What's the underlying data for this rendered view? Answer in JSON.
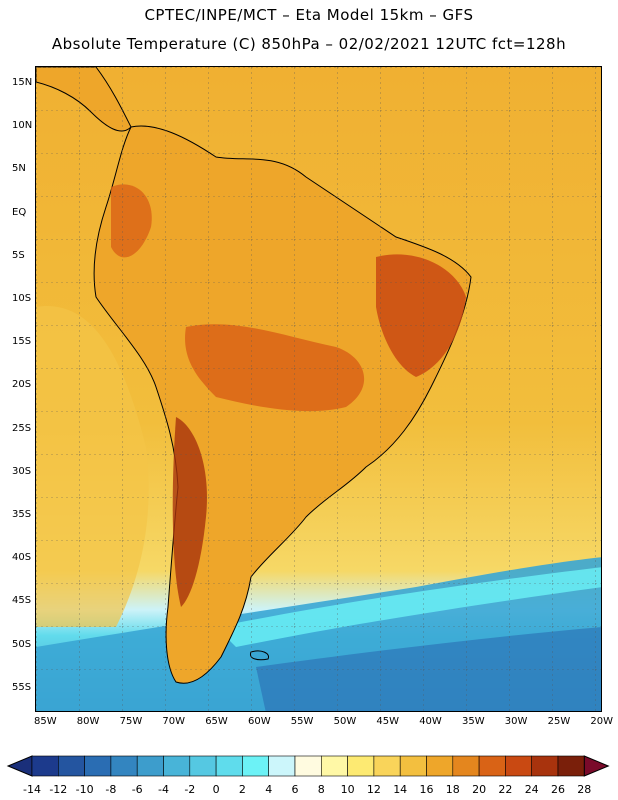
{
  "header": {
    "line1": "CPTEC/INPE/MCT –  Eta Model 15km – GFS",
    "line2": "Absolute Temperature (C) 850hPa – 02/02/2021 12UTC fct=128h"
  },
  "map": {
    "lat_labels": [
      "15N",
      "10N",
      "5N",
      "EQ",
      "5S",
      "10S",
      "15S",
      "20S",
      "25S",
      "30S",
      "35S",
      "40S",
      "45S",
      "50S",
      "55S"
    ],
    "lon_labels": [
      "85W",
      "80W",
      "75W",
      "70W",
      "65W",
      "60W",
      "55W",
      "50W",
      "45W",
      "40W",
      "35W",
      "30W",
      "25W",
      "20W"
    ]
  },
  "colorbar": {
    "labels": [
      "-14",
      "-12",
      "-10",
      "-8",
      "-6",
      "-4",
      "-2",
      "0",
      "2",
      "4",
      "6",
      "8",
      "10",
      "12",
      "14",
      "16",
      "18",
      "20",
      "22",
      "24",
      "26",
      "28"
    ],
    "colors": [
      "#1c3a8c",
      "#2455a0",
      "#2a6db3",
      "#3385c0",
      "#3d9dcc",
      "#48b4d8",
      "#55c8e2",
      "#5fdcec",
      "#6cf2f6",
      "#ccf6fb",
      "#fffbe0",
      "#fff8a6",
      "#fdea72",
      "#f9d45a",
      "#f3bf3f",
      "#eea62a",
      "#e4861e",
      "#d96316",
      "#c94912",
      "#a8330d",
      "#7a1f0a"
    ],
    "end_low": "#1a2f7a",
    "end_high": "#7a0a2a"
  }
}
